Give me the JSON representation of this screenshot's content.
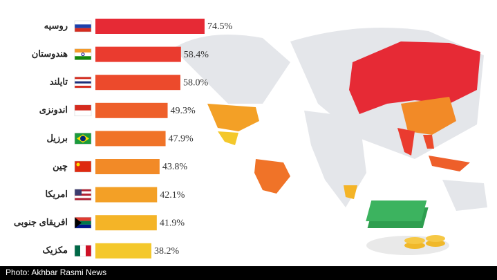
{
  "chart_data": {
    "type": "hbar",
    "categories": [
      "روسیه",
      "هندوستان",
      "تایلند",
      "اندونزی",
      "برزیل",
      "چین",
      "امریکا",
      "افریقای جنوبی",
      "مکزیک"
    ],
    "values": [
      74.5,
      58.4,
      58.0,
      49.3,
      47.9,
      43.8,
      42.1,
      41.9,
      38.2
    ],
    "value_labels": [
      "74.5%",
      "58.4%",
      "58.0%",
      "49.3%",
      "47.9%",
      "43.8%",
      "42.1%",
      "41.9%",
      "38.2%"
    ],
    "colors": [
      "#e62a35",
      "#ea3b2f",
      "#ec4a2c",
      "#ee5f2a",
      "#f07328",
      "#f28a27",
      "#f3a026",
      "#f4b427",
      "#f4c82b"
    ]
  },
  "caption": "Photo: Akhbar Rasmi News"
}
